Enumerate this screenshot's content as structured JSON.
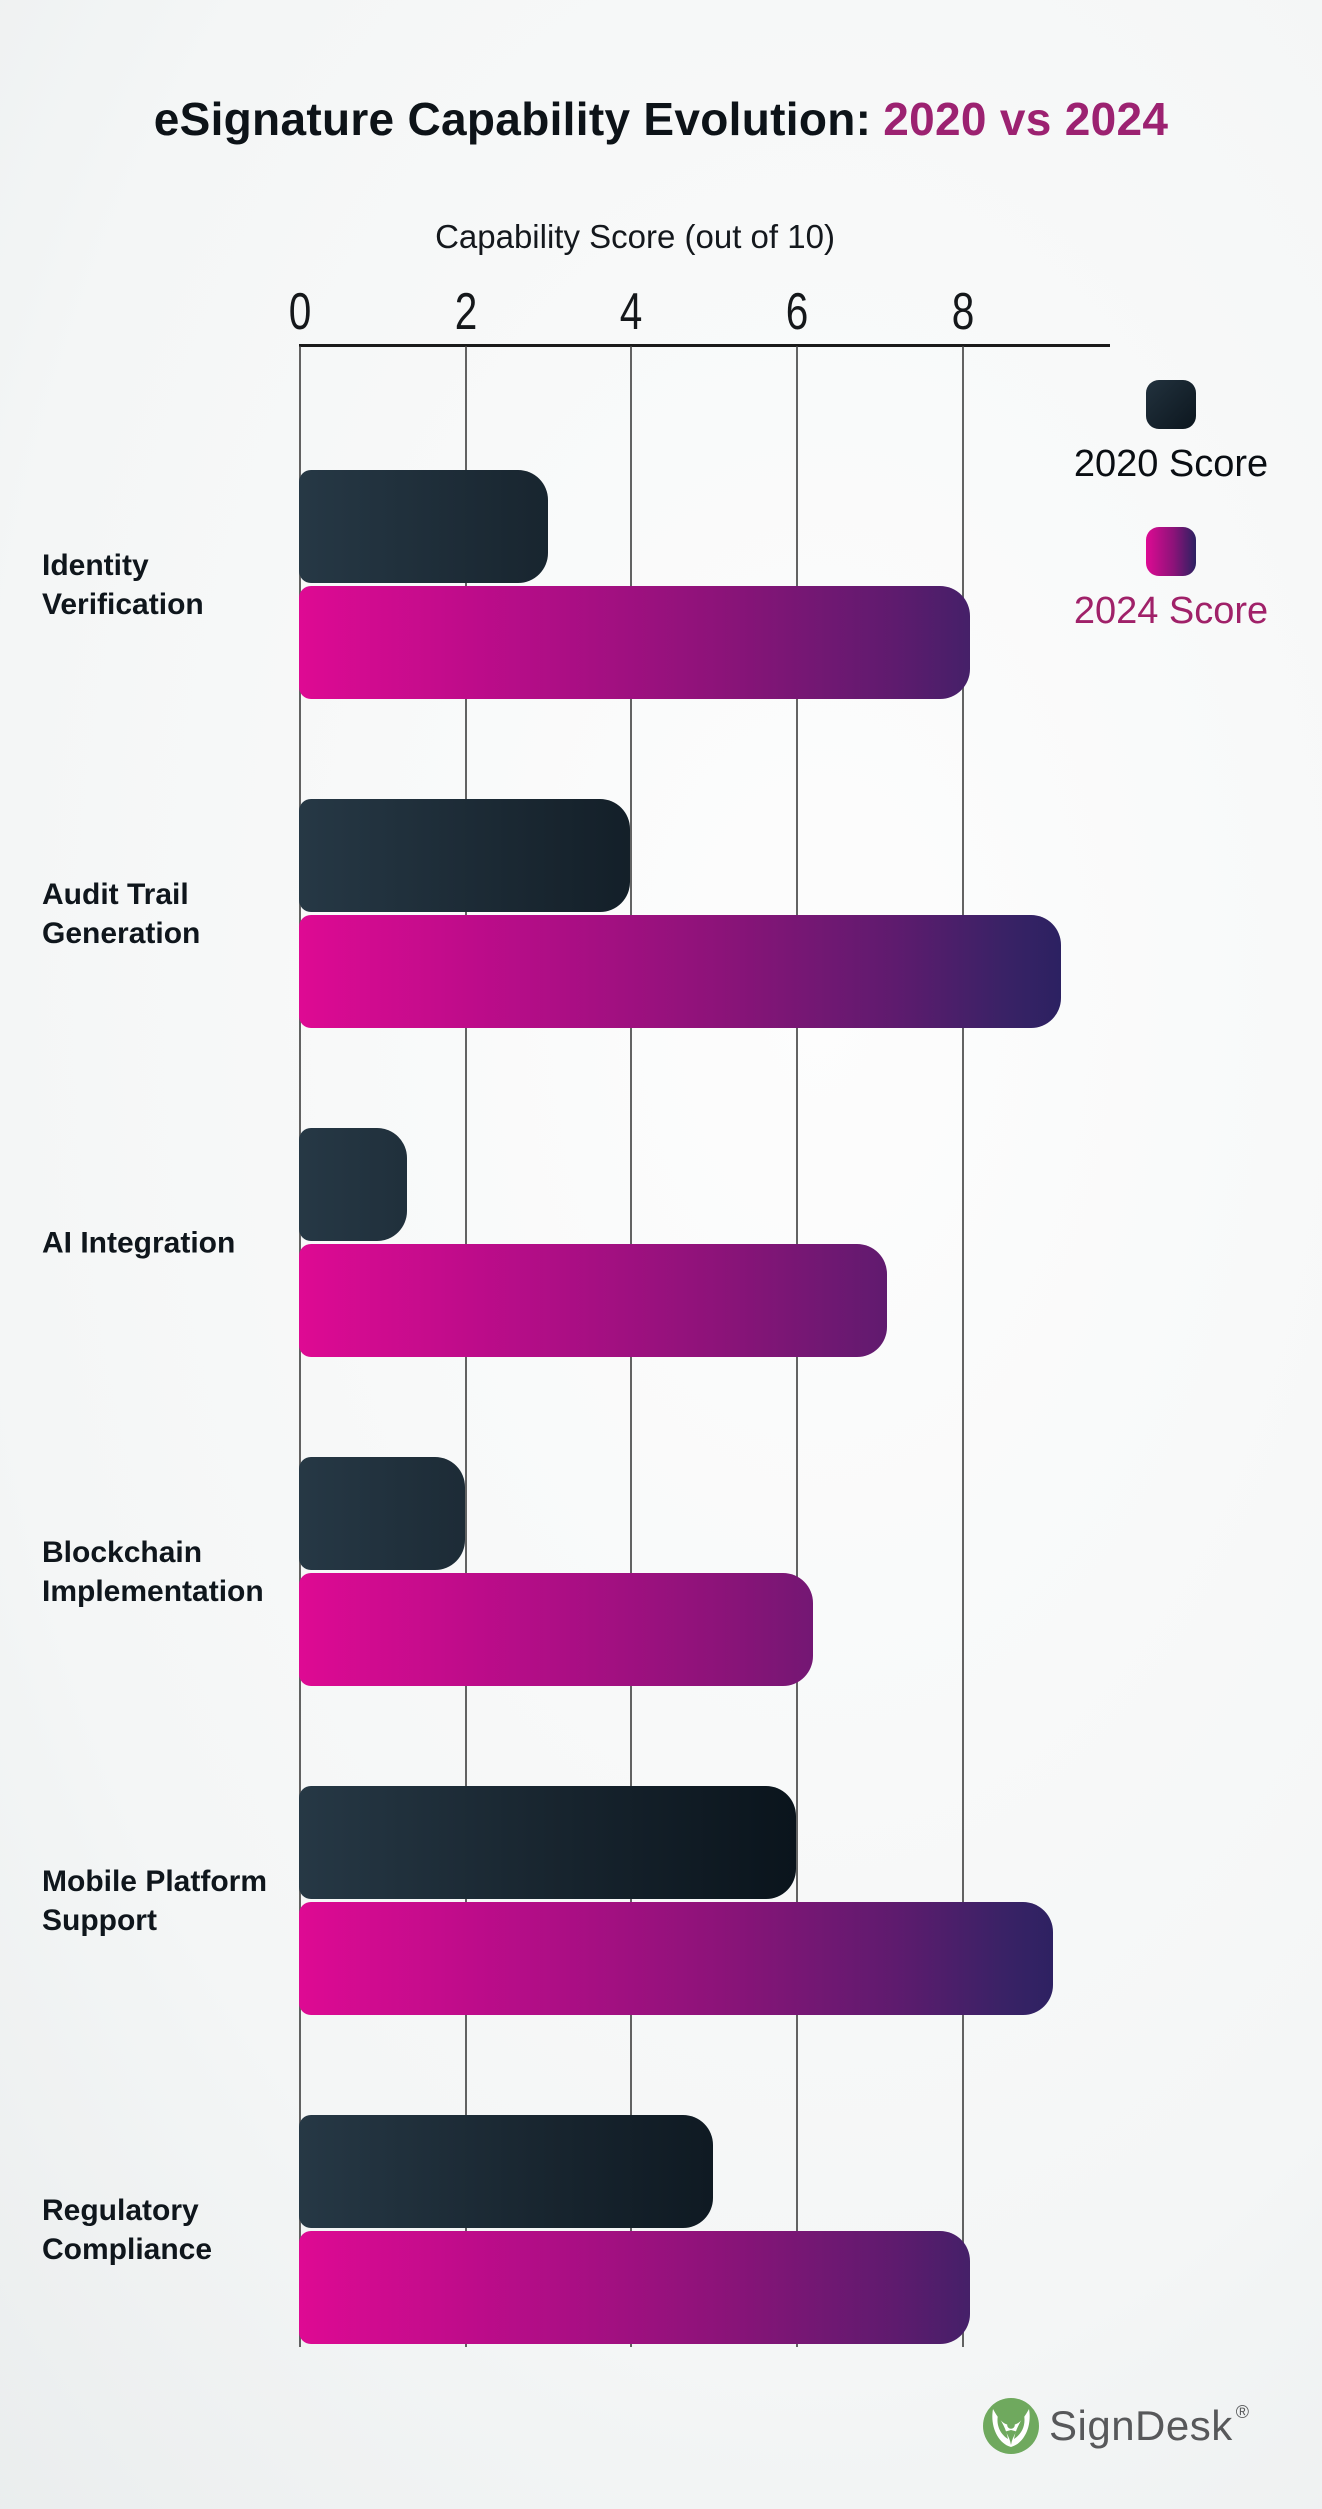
{
  "title": {
    "prefix": "eSignature Capability Evolution:",
    "highlight": "2020 vs 2024"
  },
  "axis": {
    "title": "Capability Score (out of 10)"
  },
  "legend": {
    "items": [
      {
        "label": "2020 Score"
      },
      {
        "label": "2024 Score"
      }
    ]
  },
  "chart_data": {
    "type": "bar",
    "orientation": "horizontal",
    "title": "eSignature Capability Evolution: 2020 vs 2024",
    "xlabel": "Capability Score (out of 10)",
    "categories": [
      "Identity Verification",
      "Audit Trail Generation",
      "AI Integration",
      "Blockchain Implementation",
      "Mobile Platform Support",
      "Regulatory Compliance"
    ],
    "category_lines": [
      [
        "Identity",
        "Verification"
      ],
      [
        "Audit Trail",
        "Generation"
      ],
      [
        "AI Integration"
      ],
      [
        "Blockchain",
        "Implementation"
      ],
      [
        "Mobile Platform",
        "Support"
      ],
      [
        "Regulatory",
        "Compliance"
      ]
    ],
    "series": [
      {
        "name": "2020 Score",
        "values": [
          3,
          4,
          1.3,
          2,
          6,
          5
        ]
      },
      {
        "name": "2024 Score",
        "values": [
          8.1,
          9.2,
          7.1,
          6.2,
          9.1,
          8.1
        ]
      }
    ],
    "xlim": [
      0,
      10
    ],
    "xticks": [
      0,
      2,
      4,
      6,
      8
    ],
    "grid": true,
    "legend_position": "top-right"
  },
  "branding": {
    "name": "SignDesk",
    "registered": "®"
  },
  "colors": {
    "title_highlight": "#9c2271",
    "bar_2020_start": "#263845",
    "bar_2020_end": "#0a141c",
    "bar_2024_start": "#de0a93",
    "bar_2024_end": "#2b2161",
    "legend_2024_text": "#a02169",
    "gridline": "#414141",
    "logo_green": "#6fa95e",
    "logo_text": "#57585a"
  }
}
